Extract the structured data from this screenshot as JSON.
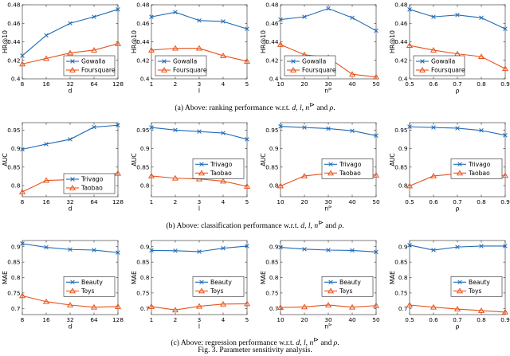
{
  "figure_caption": "Fig. 3.  Parameter sensitivity analysis.",
  "subcaptions": [
    {
      "prefix": "(a)  Above: ranking performance w.r.t. ",
      "vars": "d, l, n",
      "sup": "⊳",
      "and_word": " and ",
      "rho": "ρ",
      "end": "."
    },
    {
      "prefix": "(b)  Above: classification performance w.r.t. ",
      "vars": "d, l, n",
      "sup": "⊳",
      "and_word": " and ",
      "rho": "ρ",
      "end": "."
    },
    {
      "prefix": "(c)  Above: regression performance w.r.t. ",
      "vars": "d, l, n",
      "sup": "⊳",
      "and_word": " and ",
      "rho": "ρ",
      "end": "."
    }
  ],
  "colors": {
    "series1": "#1f6bb5",
    "series2": "#e8531b",
    "axis": "#262626"
  },
  "chart_data": [
    {
      "type": "line",
      "row": 0,
      "col": 0,
      "xlabel": "d",
      "ylabel": "HR@10",
      "xlim": [
        0,
        4
      ],
      "ylim": [
        0.4,
        0.48
      ],
      "xtick_pos": [
        0,
        1,
        2,
        3,
        4
      ],
      "xticks": [
        "8",
        "16",
        "32",
        "64",
        "128"
      ],
      "ytick_vals": [
        0.4,
        0.42,
        0.44,
        0.46,
        0.48
      ],
      "yticks": [
        "0.4",
        "0.42",
        "0.44",
        "0.46",
        "0.48"
      ],
      "legend_loc": "bottom-right",
      "series": [
        {
          "name": "Gowalla",
          "marker": "x",
          "x": [
            0,
            1,
            2,
            3,
            4
          ],
          "values": [
            0.425,
            0.447,
            0.46,
            0.467,
            0.475
          ]
        },
        {
          "name": "Foursquare",
          "marker": "triangle",
          "x": [
            0,
            1,
            2,
            3,
            4
          ],
          "values": [
            0.416,
            0.422,
            0.428,
            0.431,
            0.438
          ]
        }
      ]
    },
    {
      "type": "line",
      "row": 0,
      "col": 1,
      "xlabel": "l",
      "ylabel": "HR@10",
      "xlim": [
        1,
        5
      ],
      "ylim": [
        0.4,
        0.48
      ],
      "xtick_pos": [
        1,
        2,
        3,
        4,
        5
      ],
      "xticks": [
        "1",
        "2",
        "3",
        "4",
        "5"
      ],
      "ytick_vals": [
        0.4,
        0.42,
        0.44,
        0.46,
        0.48
      ],
      "yticks": [
        "0.4",
        "0.42",
        "0.44",
        "0.46",
        "0.48"
      ],
      "legend_loc": "bottom-left",
      "series": [
        {
          "name": "Gowalla",
          "marker": "x",
          "x": [
            1,
            2,
            3,
            4,
            5
          ],
          "values": [
            0.467,
            0.472,
            0.463,
            0.462,
            0.454
          ]
        },
        {
          "name": "Foursquare",
          "marker": "triangle",
          "x": [
            1,
            2,
            3,
            4,
            5
          ],
          "values": [
            0.431,
            0.433,
            0.433,
            0.425,
            0.419
          ]
        }
      ]
    },
    {
      "type": "line",
      "row": 0,
      "col": 2,
      "xlabel": "n",
      "xlabel_sup": "⊳",
      "ylabel": "HR@10",
      "xlim": [
        10,
        50
      ],
      "ylim": [
        0.4,
        0.48
      ],
      "xtick_pos": [
        10,
        20,
        30,
        40,
        50
      ],
      "xticks": [
        "10",
        "20",
        "30",
        "40",
        "50"
      ],
      "ytick_vals": [
        0.4,
        0.42,
        0.44,
        0.46,
        0.48
      ],
      "yticks": [
        "0.4",
        "0.42",
        "0.44",
        "0.46",
        "0.48"
      ],
      "legend_loc": "bottom-left",
      "series": [
        {
          "name": "Gowalla",
          "marker": "x",
          "x": [
            10,
            20,
            30,
            40,
            50
          ],
          "values": [
            0.464,
            0.467,
            0.476,
            0.466,
            0.452
          ]
        },
        {
          "name": "Foursquare",
          "marker": "triangle",
          "x": [
            10,
            20,
            30,
            40,
            50
          ],
          "values": [
            0.437,
            0.426,
            0.423,
            0.405,
            0.402
          ]
        }
      ]
    },
    {
      "type": "line",
      "row": 0,
      "col": 3,
      "xlabel": "ρ",
      "ylabel": "HR@10",
      "xlim": [
        0.5,
        0.9
      ],
      "ylim": [
        0.4,
        0.48
      ],
      "xtick_pos": [
        0.5,
        0.6,
        0.7,
        0.8,
        0.9
      ],
      "xticks": [
        "0.5",
        "0.6",
        "0.7",
        "0.8",
        "0.9"
      ],
      "ytick_vals": [
        0.4,
        0.42,
        0.44,
        0.46,
        0.48
      ],
      "yticks": [
        "0.4",
        "0.42",
        "0.44",
        "0.46",
        "0.48"
      ],
      "legend_loc": "bottom-left",
      "series": [
        {
          "name": "Gowalla",
          "marker": "x",
          "x": [
            0.5,
            0.6,
            0.7,
            0.8,
            0.9
          ],
          "values": [
            0.475,
            0.467,
            0.469,
            0.466,
            0.454
          ]
        },
        {
          "name": "Foursquare",
          "marker": "triangle",
          "x": [
            0.5,
            0.6,
            0.7,
            0.8,
            0.9
          ],
          "values": [
            0.436,
            0.431,
            0.427,
            0.424,
            0.411
          ]
        }
      ]
    },
    {
      "type": "line",
      "row": 1,
      "col": 0,
      "xlabel": "d",
      "ylabel": "AUC",
      "xlim": [
        0,
        4
      ],
      "ylim": [
        0.77,
        0.97
      ],
      "xtick_pos": [
        0,
        1,
        2,
        3,
        4
      ],
      "xticks": [
        "8",
        "16",
        "32",
        "64",
        "128"
      ],
      "ytick_vals": [
        0.8,
        0.85,
        0.9,
        0.95
      ],
      "yticks": [
        "0.8",
        "0.85",
        "0.9",
        "0.95"
      ],
      "legend_loc": "bottom-right",
      "series": [
        {
          "name": "Trivago",
          "marker": "x",
          "x": [
            0,
            1,
            2,
            3,
            4
          ],
          "values": [
            0.898,
            0.912,
            0.925,
            0.958,
            0.963
          ]
        },
        {
          "name": "Taobao",
          "marker": "triangle",
          "x": [
            0,
            1,
            2,
            3,
            4
          ],
          "values": [
            0.783,
            0.814,
            0.816,
            0.826,
            0.833
          ]
        }
      ]
    },
    {
      "type": "line",
      "row": 1,
      "col": 1,
      "xlabel": "l",
      "ylabel": "AUC",
      "xlim": [
        1,
        5
      ],
      "ylim": [
        0.77,
        0.97
      ],
      "xtick_pos": [
        1,
        2,
        3,
        4,
        5
      ],
      "xticks": [
        "1",
        "2",
        "3",
        "4",
        "5"
      ],
      "ytick_vals": [
        0.8,
        0.85,
        0.9,
        0.95
      ],
      "yticks": [
        "0.8",
        "0.85",
        "0.9",
        "0.95"
      ],
      "legend_loc": "mid-right",
      "series": [
        {
          "name": "Trivago",
          "marker": "x",
          "x": [
            1,
            2,
            3,
            4,
            5
          ],
          "values": [
            0.957,
            0.95,
            0.946,
            0.942,
            0.925
          ]
        },
        {
          "name": "Taobao",
          "marker": "triangle",
          "x": [
            1,
            2,
            3,
            4,
            5
          ],
          "values": [
            0.826,
            0.82,
            0.818,
            0.812,
            0.798
          ]
        }
      ]
    },
    {
      "type": "line",
      "row": 1,
      "col": 2,
      "xlabel": "n",
      "xlabel_sup": "⊳",
      "ylabel": "AUC",
      "xlim": [
        10,
        50
      ],
      "ylim": [
        0.77,
        0.97
      ],
      "xtick_pos": [
        10,
        20,
        30,
        40,
        50
      ],
      "xticks": [
        "10",
        "20",
        "30",
        "40",
        "50"
      ],
      "ytick_vals": [
        0.8,
        0.85,
        0.9,
        0.95
      ],
      "yticks": [
        "0.8",
        "0.85",
        "0.9",
        "0.95"
      ],
      "legend_loc": "mid-right",
      "series": [
        {
          "name": "Trivago",
          "marker": "x",
          "x": [
            10,
            20,
            30,
            40,
            50
          ],
          "values": [
            0.96,
            0.957,
            0.954,
            0.948,
            0.935
          ]
        },
        {
          "name": "Taobao",
          "marker": "triangle",
          "x": [
            10,
            20,
            30,
            40,
            50
          ],
          "values": [
            0.799,
            0.826,
            0.833,
            0.834,
            0.828
          ]
        }
      ]
    },
    {
      "type": "line",
      "row": 1,
      "col": 3,
      "xlabel": "ρ",
      "ylabel": "AUC",
      "xlim": [
        0.5,
        0.9
      ],
      "ylim": [
        0.77,
        0.97
      ],
      "xtick_pos": [
        0.5,
        0.6,
        0.7,
        0.8,
        0.9
      ],
      "xticks": [
        "0.5",
        "0.6",
        "0.7",
        "0.8",
        "0.9"
      ],
      "ytick_vals": [
        0.8,
        0.85,
        0.9,
        0.95
      ],
      "yticks": [
        "0.8",
        "0.85",
        "0.9",
        "0.95"
      ],
      "legend_loc": "mid-right",
      "series": [
        {
          "name": "Trivago",
          "marker": "x",
          "x": [
            0.5,
            0.6,
            0.7,
            0.8,
            0.9
          ],
          "values": [
            0.959,
            0.957,
            0.955,
            0.949,
            0.936
          ]
        },
        {
          "name": "Taobao",
          "marker": "triangle",
          "x": [
            0.5,
            0.6,
            0.7,
            0.8,
            0.9
          ],
          "values": [
            0.799,
            0.826,
            0.832,
            0.834,
            0.827
          ]
        }
      ]
    },
    {
      "type": "line",
      "row": 2,
      "col": 0,
      "xlabel": "d",
      "ylabel": "MAE",
      "xlim": [
        0,
        4
      ],
      "ylim": [
        0.68,
        0.92
      ],
      "xtick_pos": [
        0,
        1,
        2,
        3,
        4
      ],
      "xticks": [
        "8",
        "16",
        "32",
        "64",
        "128"
      ],
      "ytick_vals": [
        0.7,
        0.75,
        0.8,
        0.85,
        0.9
      ],
      "yticks": [
        "0.7",
        "0.75",
        "0.8",
        "0.85",
        "0.9"
      ],
      "legend_loc": "mid-right",
      "series": [
        {
          "name": "Beauty",
          "marker": "x",
          "x": [
            0,
            1,
            2,
            3,
            4
          ],
          "values": [
            0.91,
            0.898,
            0.891,
            0.889,
            0.881
          ]
        },
        {
          "name": "Toys",
          "marker": "triangle",
          "x": [
            0,
            1,
            2,
            3,
            4
          ],
          "values": [
            0.741,
            0.722,
            0.711,
            0.704,
            0.706
          ]
        }
      ]
    },
    {
      "type": "line",
      "row": 2,
      "col": 1,
      "xlabel": "l",
      "ylabel": "MAE",
      "xlim": [
        1,
        5
      ],
      "ylim": [
        0.68,
        0.92
      ],
      "xtick_pos": [
        1,
        2,
        3,
        4,
        5
      ],
      "xticks": [
        "1",
        "2",
        "3",
        "4",
        "5"
      ],
      "ytick_vals": [
        0.7,
        0.75,
        0.8,
        0.85,
        0.9
      ],
      "yticks": [
        "0.7",
        "0.75",
        "0.8",
        "0.85",
        "0.9"
      ],
      "legend_loc": "mid-right",
      "series": [
        {
          "name": "Beauty",
          "marker": "x",
          "x": [
            1,
            2,
            3,
            4,
            5
          ],
          "values": [
            0.888,
            0.887,
            0.884,
            0.895,
            0.902
          ]
        },
        {
          "name": "Toys",
          "marker": "triangle",
          "x": [
            1,
            2,
            3,
            4,
            5
          ],
          "values": [
            0.706,
            0.695,
            0.707,
            0.714,
            0.715
          ]
        }
      ]
    },
    {
      "type": "line",
      "row": 2,
      "col": 2,
      "xlabel": "n",
      "xlabel_sup": "⊳",
      "ylabel": "MAE",
      "xlim": [
        10,
        50
      ],
      "ylim": [
        0.68,
        0.92
      ],
      "xtick_pos": [
        10,
        20,
        30,
        40,
        50
      ],
      "xticks": [
        "10",
        "20",
        "30",
        "40",
        "50"
      ],
      "ytick_vals": [
        0.7,
        0.75,
        0.8,
        0.85,
        0.9
      ],
      "yticks": [
        "0.7",
        "0.75",
        "0.8",
        "0.85",
        "0.9"
      ],
      "legend_loc": "mid-right",
      "series": [
        {
          "name": "Beauty",
          "marker": "x",
          "x": [
            10,
            20,
            30,
            40,
            50
          ],
          "values": [
            0.898,
            0.892,
            0.889,
            0.888,
            0.883
          ]
        },
        {
          "name": "Toys",
          "marker": "triangle",
          "x": [
            10,
            20,
            30,
            40,
            50
          ],
          "values": [
            0.703,
            0.705,
            0.711,
            0.704,
            0.709
          ]
        }
      ]
    },
    {
      "type": "line",
      "row": 2,
      "col": 3,
      "xlabel": "ρ",
      "ylabel": "MAE",
      "xlim": [
        0.5,
        0.9
      ],
      "ylim": [
        0.68,
        0.92
      ],
      "xtick_pos": [
        0.5,
        0.6,
        0.7,
        0.8,
        0.9
      ],
      "xticks": [
        "0.5",
        "0.6",
        "0.7",
        "0.8",
        "0.9"
      ],
      "ytick_vals": [
        0.7,
        0.75,
        0.8,
        0.85,
        0.9
      ],
      "yticks": [
        "0.7",
        "0.75",
        "0.8",
        "0.85",
        "0.9"
      ],
      "legend_loc": "mid-right",
      "series": [
        {
          "name": "Beauty",
          "marker": "x",
          "x": [
            0.5,
            0.6,
            0.7,
            0.8,
            0.9
          ],
          "values": [
            0.905,
            0.889,
            0.899,
            0.902,
            0.902
          ]
        },
        {
          "name": "Toys",
          "marker": "triangle",
          "x": [
            0.5,
            0.6,
            0.7,
            0.8,
            0.9
          ],
          "values": [
            0.711,
            0.704,
            0.698,
            0.693,
            0.688
          ]
        }
      ]
    }
  ]
}
